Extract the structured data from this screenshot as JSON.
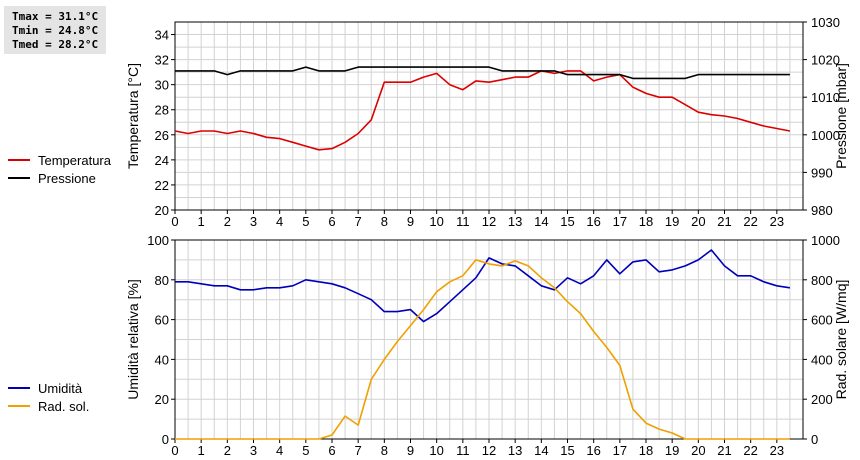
{
  "stats": {
    "tmax": "Tmax = 31.1°C",
    "tmin": "Tmin = 24.8°C",
    "tmed": "Tmed = 28.2°C"
  },
  "colors": {
    "temperature": "#dd0000",
    "pressure": "#000000",
    "humidity": "#0000bb",
    "radiation": "#f0a000",
    "grid": "#d2d2d2"
  },
  "chart_data": [
    {
      "type": "line",
      "xlim": [
        0,
        24
      ],
      "x_ticks": [
        "0",
        "1",
        "2",
        "3",
        "4",
        "5",
        "6",
        "7",
        "8",
        "9",
        "10",
        "11",
        "12",
        "13",
        "14",
        "15",
        "16",
        "17",
        "18",
        "19",
        "20",
        "21",
        "22",
        "23"
      ],
      "left_axis": {
        "label": "Temperatura [°C]",
        "ylim": [
          20,
          35
        ],
        "ticks": [
          "20",
          "22",
          "24",
          "26",
          "28",
          "30",
          "32",
          "34"
        ]
      },
      "right_axis": {
        "label": "Pressione [mbar]",
        "ylim": [
          980,
          1030
        ],
        "ticks": [
          "980",
          "990",
          "1000",
          "1010",
          "1020",
          "1030"
        ]
      },
      "grid": true,
      "legend_position": "left",
      "series": [
        {
          "name": "Temperatura",
          "axis": "left",
          "x": [
            0,
            0.5,
            1,
            1.5,
            2,
            2.5,
            3,
            3.5,
            4,
            4.5,
            5,
            5.5,
            6,
            6.5,
            7,
            7.5,
            8,
            8.5,
            9,
            9.5,
            10,
            10.5,
            11,
            11.5,
            12,
            12.5,
            13,
            13.5,
            14,
            14.5,
            15,
            15.5,
            16,
            16.5,
            17,
            17.5,
            18,
            18.5,
            19,
            19.5,
            20,
            20.5,
            21,
            21.5,
            22,
            22.5,
            23,
            23.5
          ],
          "y": [
            26.3,
            26.1,
            26.3,
            26.3,
            26.1,
            26.3,
            26.1,
            25.8,
            25.7,
            25.4,
            25.1,
            24.8,
            24.9,
            25.4,
            26.1,
            27.2,
            30.2,
            30.2,
            30.2,
            30.6,
            30.9,
            30.0,
            29.6,
            30.3,
            30.2,
            30.4,
            30.6,
            30.6,
            31.1,
            30.9,
            31.1,
            31.1,
            30.3,
            30.6,
            30.8,
            29.8,
            29.3,
            29.0,
            29.0,
            28.4,
            27.8,
            27.6,
            27.5,
            27.3,
            27.0,
            26.7,
            26.5,
            26.3
          ]
        },
        {
          "name": "Pressione",
          "axis": "right",
          "x": [
            0,
            0.5,
            1,
            1.5,
            2,
            2.5,
            3,
            3.5,
            4,
            4.5,
            5,
            5.5,
            6,
            6.5,
            7,
            7.5,
            8,
            8.5,
            9,
            9.5,
            10,
            10.5,
            11,
            11.5,
            12,
            12.5,
            13,
            13.5,
            14,
            14.5,
            15,
            15.5,
            16,
            16.5,
            17,
            17.5,
            18,
            18.5,
            19,
            19.5,
            20,
            20.5,
            21,
            21.5,
            22,
            22.5,
            23,
            23.5
          ],
          "y": [
            1017,
            1017,
            1017,
            1017,
            1016,
            1017,
            1017,
            1017,
            1017,
            1017,
            1018,
            1017,
            1017,
            1017,
            1018,
            1018,
            1018,
            1018,
            1018,
            1018,
            1018,
            1018,
            1018,
            1018,
            1018,
            1017,
            1017,
            1017,
            1017,
            1017,
            1016,
            1016,
            1016,
            1016,
            1016,
            1015,
            1015,
            1015,
            1015,
            1015,
            1016,
            1016,
            1016,
            1016,
            1016,
            1016,
            1016,
            1016
          ]
        }
      ]
    },
    {
      "type": "line",
      "xlim": [
        0,
        24
      ],
      "x_ticks": [
        "0",
        "1",
        "2",
        "3",
        "4",
        "5",
        "6",
        "7",
        "8",
        "9",
        "10",
        "11",
        "12",
        "13",
        "14",
        "15",
        "16",
        "17",
        "18",
        "19",
        "20",
        "21",
        "22",
        "23"
      ],
      "left_axis": {
        "label": "Umidità relativa [%]",
        "ylim": [
          0,
          100
        ],
        "ticks": [
          "0",
          "20",
          "40",
          "60",
          "80",
          "100"
        ]
      },
      "right_axis": {
        "label": "Rad. solare [W/mq]",
        "ylim": [
          0,
          1000
        ],
        "ticks": [
          "0",
          "200",
          "400",
          "600",
          "800",
          "1000"
        ]
      },
      "grid": true,
      "legend_position": "left",
      "series": [
        {
          "name": "Umidità",
          "axis": "left",
          "x": [
            0,
            0.5,
            1,
            1.5,
            2,
            2.5,
            3,
            3.5,
            4,
            4.5,
            5,
            5.5,
            6,
            6.5,
            7,
            7.5,
            8,
            8.5,
            9,
            9.5,
            10,
            10.5,
            11,
            11.5,
            12,
            12.5,
            13,
            13.5,
            14,
            14.5,
            15,
            15.5,
            16,
            16.5,
            17,
            17.5,
            18,
            18.5,
            19,
            19.5,
            20,
            20.5,
            21,
            21.5,
            22,
            22.5,
            23,
            23.5
          ],
          "y": [
            79,
            79,
            78,
            77,
            77,
            75,
            75,
            76,
            76,
            77,
            80,
            79,
            78,
            76,
            73,
            70,
            64,
            64,
            65,
            59,
            63,
            69,
            75,
            81,
            91,
            88,
            87,
            82,
            77,
            75,
            81,
            78,
            82,
            90,
            83,
            89,
            90,
            84,
            85,
            87,
            90,
            95,
            87,
            82,
            82,
            79,
            77,
            76
          ]
        },
        {
          "name": "Rad. sol.",
          "axis": "right",
          "x": [
            0,
            0.5,
            1,
            1.5,
            2,
            2.5,
            3,
            3.5,
            4,
            4.5,
            5,
            5.5,
            6,
            6.5,
            7,
            7.5,
            8,
            8.5,
            9,
            9.5,
            10,
            10.5,
            11,
            11.5,
            12,
            12.5,
            13,
            13.5,
            14,
            14.5,
            15,
            15.5,
            16,
            16.5,
            17,
            17.5,
            18,
            18.5,
            19,
            19.5,
            20,
            20.5,
            21,
            21.5,
            22,
            22.5,
            23,
            23.5
          ],
          "y": [
            0,
            0,
            0,
            0,
            0,
            0,
            0,
            0,
            0,
            0,
            0,
            0,
            20,
            115,
            70,
            300,
            400,
            490,
            570,
            650,
            740,
            790,
            820,
            900,
            880,
            870,
            895,
            870,
            810,
            760,
            690,
            630,
            540,
            460,
            370,
            150,
            80,
            50,
            30,
            0,
            0,
            0,
            0,
            0,
            0,
            0,
            0,
            0
          ]
        }
      ]
    }
  ]
}
